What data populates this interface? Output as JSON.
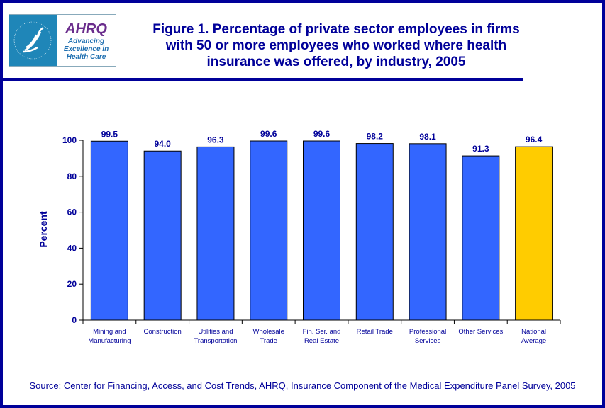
{
  "logo": {
    "text": "AHRQ",
    "tagline": "Advancing Excellence in Health Care",
    "seal_text": "Department of Health & Human Services USA"
  },
  "title": "Figure 1. Percentage of private sector employees in firms with 50 or more employees who worked where health insurance was offered, by industry, 2005",
  "source": "Source: Center for Financing, Access, and Cost Trends, AHRQ, Insurance Component of the Medical Expenditure Panel Survey, 2005",
  "chart_data": {
    "type": "bar",
    "title": "Figure 1. Percentage of private sector employees in firms with 50 or more employees who worked where health insurance was offered, by industry, 2005",
    "xlabel": "",
    "ylabel": "Percent",
    "ylim": [
      0,
      100
    ],
    "yticks": [
      0,
      20,
      40,
      60,
      80,
      100
    ],
    "grid": false,
    "categories": [
      [
        "Mining and",
        "Manufacturing"
      ],
      [
        "Construction"
      ],
      [
        "Utilities and",
        "Transportation"
      ],
      [
        "Wholesale",
        "Trade"
      ],
      [
        "Fin. Ser. and",
        "Real Estate"
      ],
      [
        "Retail Trade"
      ],
      [
        "Professional",
        "Services"
      ],
      [
        "Other Services"
      ],
      [
        "National",
        "Average"
      ]
    ],
    "values": [
      99.5,
      94.0,
      96.3,
      99.6,
      99.6,
      98.2,
      98.1,
      91.3,
      96.4
    ],
    "data_labels": [
      "99.5",
      "94.0",
      "96.3",
      "99.6",
      "99.6",
      "98.2",
      "98.1",
      "91.3",
      "96.4"
    ],
    "colors": {
      "bar": "#3366ff",
      "highlight": "#ffcc00",
      "text": "#000099"
    }
  }
}
